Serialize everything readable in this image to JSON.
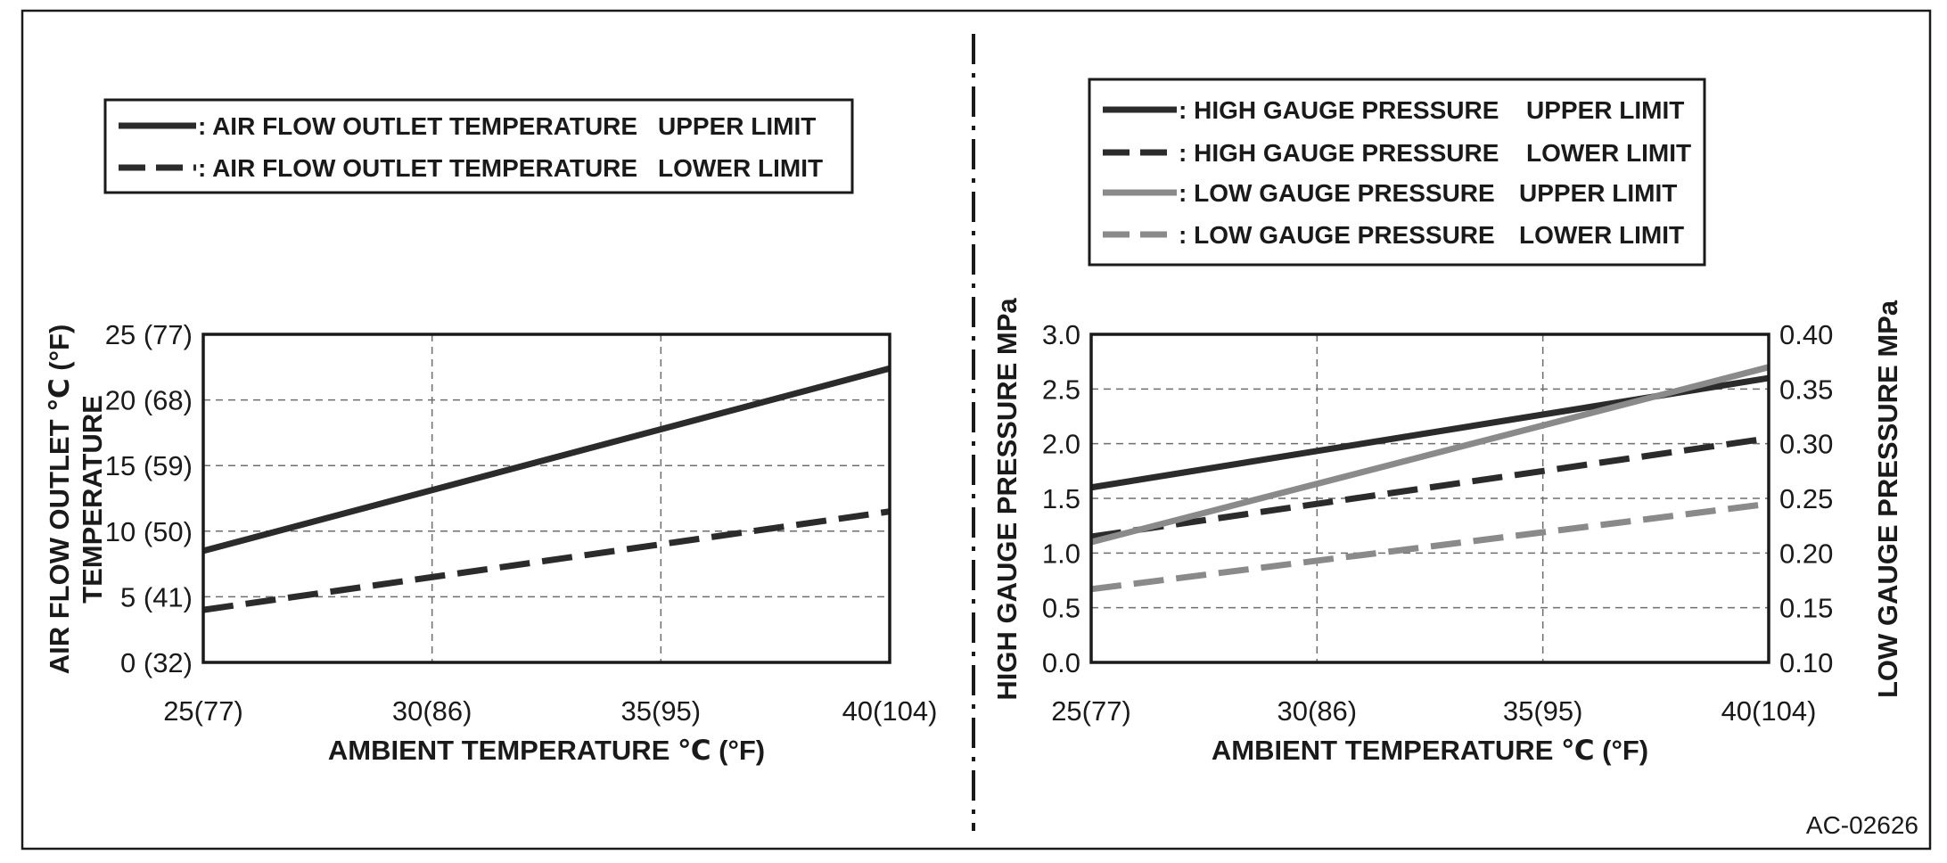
{
  "figure_id": "AC-02626",
  "colors": {
    "dark": "#2b2b2b",
    "gray": "#8a8a8a",
    "grid": "#6e6e6e"
  },
  "chart_data": [
    {
      "type": "line",
      "legend": {
        "placement": "top-center",
        "entries": [
          {
            "label": ": AIR FLOW OUTLET TEMPERATURE",
            "limit": "UPPER LIMIT",
            "style": "solid",
            "color": "#2b2b2b"
          },
          {
            "label": ": AIR FLOW OUTLET TEMPERATURE",
            "limit": "LOWER LIMIT",
            "style": "dashed",
            "color": "#2b2b2b"
          }
        ]
      },
      "x_tick_labels": [
        "25(77)",
        "30(86)",
        "35(95)",
        "40(104)"
      ],
      "x_ticks": [
        25,
        30,
        35,
        40
      ],
      "xlim": [
        25,
        40
      ],
      "xlabel": "AMBIENT TEMPERATURE ℃ (°F)",
      "ylabel_lines": [
        "AIR FLOW OUTLET ℃ (°F)",
        "TEMPERATURE"
      ],
      "y_ticks": [
        0,
        5,
        10,
        15,
        20,
        25
      ],
      "y_tick_labels": [
        "0 (32)",
        "5 (41)",
        "10 (50)",
        "15 (59)",
        "20 (68)",
        "25 (77)"
      ],
      "ylim": [
        0,
        25
      ],
      "grid": true,
      "series": [
        {
          "name": "AIR FLOW OUTLET TEMPERATURE UPPER LIMIT",
          "style": "solid",
          "color": "#2b2b2b",
          "axis": "left",
          "x": [
            25,
            40
          ],
          "y": [
            8.5,
            22.4
          ]
        },
        {
          "name": "AIR FLOW OUTLET TEMPERATURE LOWER LIMIT",
          "style": "dashed",
          "color": "#2b2b2b",
          "axis": "left",
          "x": [
            25,
            40
          ],
          "y": [
            4.0,
            11.5
          ]
        }
      ]
    },
    {
      "type": "line",
      "legend": {
        "placement": "top-center",
        "entries": [
          {
            "label": ": HIGH GAUGE PRESSURE",
            "limit": "UPPER LIMIT",
            "style": "solid",
            "color": "#2b2b2b"
          },
          {
            "label": ": HIGH GAUGE PRESSURE",
            "limit": "LOWER LIMIT",
            "style": "dashed",
            "color": "#2b2b2b"
          },
          {
            "label": ": LOW GAUGE PRESSURE",
            "limit": "UPPER LIMIT",
            "style": "solid",
            "color": "#8a8a8a"
          },
          {
            "label": ": LOW GAUGE PRESSURE",
            "limit": "LOWER LIMIT",
            "style": "dashed",
            "color": "#8a8a8a"
          }
        ]
      },
      "x_tick_labels": [
        "25(77)",
        "30(86)",
        "35(95)",
        "40(104)"
      ],
      "x_ticks": [
        25,
        30,
        35,
        40
      ],
      "xlim": [
        25,
        40
      ],
      "xlabel": "AMBIENT TEMPERATURE ℃ (°F)",
      "ylabel_left": "HIGH GAUGE PRESSURE MPa",
      "ylabel_right": "LOW GAUGE PRESSURE MPa",
      "y_ticks_left": [
        0.0,
        0.5,
        1.0,
        1.5,
        2.0,
        2.5,
        3.0
      ],
      "y_tick_labels_left": [
        "0.0",
        "0.5",
        "1.0",
        "1.5",
        "2.0",
        "2.5",
        "3.0"
      ],
      "ylim_left": [
        0.0,
        3.0
      ],
      "y_ticks_right": [
        0.1,
        0.15,
        0.2,
        0.25,
        0.3,
        0.35,
        0.4
      ],
      "y_tick_labels_right": [
        "0.10",
        "0.15",
        "0.20",
        "0.25",
        "0.30",
        "0.35",
        "0.40"
      ],
      "ylim_right": [
        0.1,
        0.4
      ],
      "grid": true,
      "series": [
        {
          "name": "HIGH GAUGE PRESSURE UPPER LIMIT",
          "style": "solid",
          "color": "#2b2b2b",
          "axis": "left",
          "x": [
            25,
            40
          ],
          "y": [
            1.6,
            2.6
          ]
        },
        {
          "name": "HIGH GAUGE PRESSURE LOWER LIMIT",
          "style": "dashed",
          "color": "#2b2b2b",
          "axis": "left",
          "x": [
            25,
            40
          ],
          "y": [
            1.15,
            2.05
          ]
        },
        {
          "name": "LOW GAUGE PRESSURE UPPER LIMIT",
          "style": "solid",
          "color": "#8a8a8a",
          "axis": "right",
          "x": [
            25,
            40
          ],
          "y": [
            0.21,
            0.37
          ]
        },
        {
          "name": "LOW GAUGE PRESSURE LOWER LIMIT",
          "style": "dashed",
          "color": "#8a8a8a",
          "axis": "right",
          "x": [
            25,
            40
          ],
          "y": [
            0.167,
            0.245
          ]
        }
      ]
    }
  ]
}
